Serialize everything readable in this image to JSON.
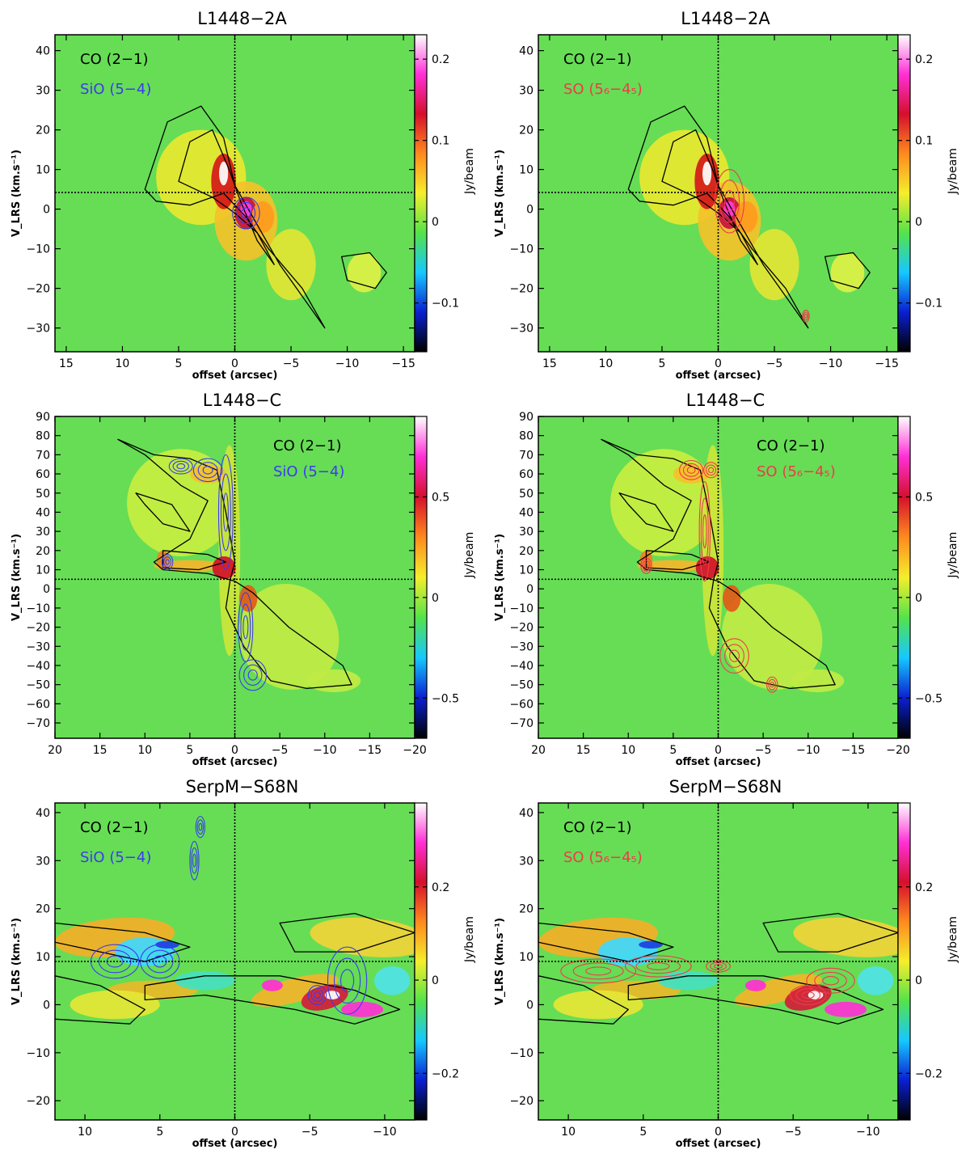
{
  "figure": {
    "colormap": [
      "#000000",
      "#0b1fd0",
      "#16c8ff",
      "#54e34a",
      "#f4ee2c",
      "#ff8a1e",
      "#d4102c",
      "#ff2fd6",
      "#ffffff"
    ],
    "background_green": "#66dd55",
    "colors": {
      "sio": "#3b3bf0",
      "so": "#f03a4a",
      "co": "#000000"
    }
  },
  "chart_data": [
    {
      "type": "heatmap",
      "panel": "top-left",
      "title": "L1448−2A",
      "xlabel": "offset (arcsec)",
      "ylabel": "V_LRS (km.s⁻¹)",
      "xlim": [
        16,
        -16
      ],
      "ylim": [
        -36,
        44
      ],
      "xticks": [
        15,
        10,
        5,
        0,
        -5,
        -10,
        -15
      ],
      "yticks": [
        -30,
        -20,
        -10,
        0,
        10,
        20,
        30,
        40
      ],
      "vsys": 4.2,
      "colorbar": {
        "label": "Jy/beam",
        "range": [
          -0.16,
          0.23
        ],
        "ticks": [
          -0.1,
          0,
          0.1,
          0.2
        ]
      },
      "lines": [
        {
          "text": "CO (2−1)",
          "color": "#000000"
        },
        {
          "text": "SiO (5−4)",
          "color": "#3b3bf0"
        }
      ],
      "overlay": "sio",
      "grid": false
    },
    {
      "type": "heatmap",
      "panel": "top-right",
      "title": "L1448−2A",
      "xlabel": "offset (arcsec)",
      "ylabel": "V_LRS (km.s⁻¹)",
      "xlim": [
        16,
        -16
      ],
      "ylim": [
        -36,
        44
      ],
      "xticks": [
        15,
        10,
        5,
        0,
        -5,
        -10,
        -15
      ],
      "yticks": [
        -30,
        -20,
        -10,
        0,
        10,
        20,
        30,
        40
      ],
      "vsys": 4.2,
      "colorbar": {
        "label": "Jy/beam",
        "range": [
          -0.16,
          0.23
        ],
        "ticks": [
          -0.1,
          0,
          0.1,
          0.2
        ]
      },
      "lines": [
        {
          "text": "CO (2−1)",
          "color": "#000000"
        },
        {
          "text": "SO (5₆−4₅)",
          "color": "#f03a4a"
        }
      ],
      "overlay": "so",
      "grid": false
    },
    {
      "type": "heatmap",
      "panel": "middle-left",
      "title": "L1448−C",
      "xlabel": "offset (arcsec)",
      "ylabel": "V_LRS (km.s⁻¹)",
      "xlim": [
        20,
        -20
      ],
      "ylim": [
        -78,
        90
      ],
      "xticks": [
        20,
        15,
        10,
        5,
        0,
        -5,
        -10,
        -15,
        -20
      ],
      "yticks": [
        -70,
        -60,
        -50,
        -40,
        -30,
        -20,
        -10,
        0,
        10,
        20,
        30,
        40,
        50,
        60,
        70,
        80,
        90
      ],
      "vsys": 5,
      "colorbar": {
        "label": "Jy/beam",
        "range": [
          -0.7,
          0.9
        ],
        "ticks": [
          -0.5,
          0,
          0.5
        ]
      },
      "lines": [
        {
          "text": "CO (2−1)",
          "color": "#000000"
        },
        {
          "text": "SiO (5−4)",
          "color": "#3b3bf0"
        }
      ],
      "overlay": "sio",
      "grid": false
    },
    {
      "type": "heatmap",
      "panel": "middle-right",
      "title": "L1448−C",
      "xlabel": "offset (arcsec)",
      "ylabel": "V_LRS (km.s⁻¹)",
      "xlim": [
        20,
        -20
      ],
      "ylim": [
        -78,
        90
      ],
      "xticks": [
        20,
        15,
        10,
        5,
        0,
        -5,
        -10,
        -15,
        -20
      ],
      "yticks": [
        -70,
        -60,
        -50,
        -40,
        -30,
        -20,
        -10,
        0,
        10,
        20,
        30,
        40,
        50,
        60,
        70,
        80,
        90
      ],
      "vsys": 5,
      "colorbar": {
        "label": "Jy/beam",
        "range": [
          -0.7,
          0.9
        ],
        "ticks": [
          -0.5,
          0,
          0.5
        ]
      },
      "lines": [
        {
          "text": "CO (2−1)",
          "color": "#000000"
        },
        {
          "text": "SO (5₆−4₅)",
          "color": "#f03a4a"
        }
      ],
      "overlay": "so",
      "grid": false
    },
    {
      "type": "heatmap",
      "panel": "bottom-left",
      "title": "SerpM−S68N",
      "xlabel": "offset (arcsec)",
      "ylabel": "V_LRS (km.s⁻¹)",
      "xlim": [
        12,
        -12
      ],
      "ylim": [
        -24,
        42
      ],
      "xticks": [
        10,
        5,
        0,
        -5,
        -10
      ],
      "yticks": [
        -20,
        -10,
        0,
        10,
        20,
        30,
        40
      ],
      "vsys": 9,
      "colorbar": {
        "label": "Jy/beam",
        "range": [
          -0.3,
          0.38
        ],
        "ticks": [
          -0.2,
          0,
          0.2
        ]
      },
      "lines": [
        {
          "text": "CO (2−1)",
          "color": "#000000"
        },
        {
          "text": "SiO (5−4)",
          "color": "#3b3bf0"
        }
      ],
      "overlay": "sio",
      "grid": false
    },
    {
      "type": "heatmap",
      "panel": "bottom-right",
      "title": "SerpM−S68N",
      "xlabel": "offset (arcsec)",
      "ylabel": "V_LRS (km.s⁻¹)",
      "xlim": [
        12,
        -12
      ],
      "ylim": [
        -24,
        42
      ],
      "xticks": [
        10,
        5,
        0,
        -5,
        -10
      ],
      "yticks": [
        -20,
        -10,
        0,
        10,
        20,
        30,
        40
      ],
      "vsys": 9,
      "colorbar": {
        "label": "Jy/beam",
        "range": [
          -0.3,
          0.38
        ],
        "ticks": [
          -0.2,
          0,
          0.2
        ]
      },
      "lines": [
        {
          "text": "CO (2−1)",
          "color": "#000000"
        },
        {
          "text": "SO (5₆−4₅)",
          "color": "#f03a4a"
        }
      ],
      "overlay": "so",
      "grid": false
    }
  ]
}
